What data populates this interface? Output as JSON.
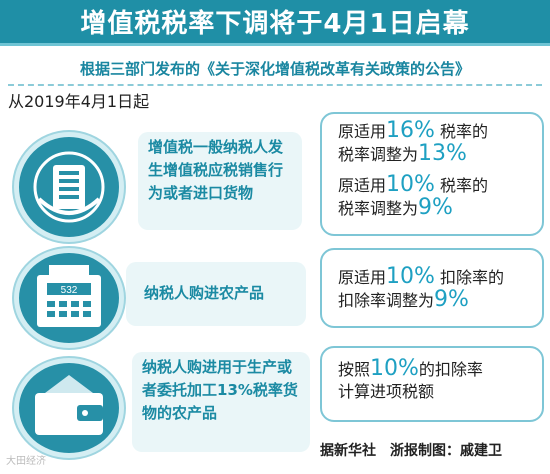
{
  "title": "增值税税率下调将于4月1日启幕",
  "subtitle": "根据三部门发布的《关于深化增值税改革有关政策的公告》",
  "date_line": "从2019年4月1日起",
  "rows": [
    {
      "icon": "tax-emblem-icon",
      "label": "增值税一般纳税人发生增值税应税销售行为或者进口货物",
      "rules": [
        {
          "pre": "原适用",
          "old": "16%",
          "mid": "税率的",
          "post": "税率调整为",
          "new": "13%"
        },
        {
          "pre": "原适用",
          "old": "10%",
          "mid": "税率的",
          "post": "税率调整为",
          "new": "9%"
        }
      ]
    },
    {
      "icon": "calculator-icon",
      "label": "纳税人购进农产品",
      "rules": [
        {
          "pre": "原适用",
          "old": "10%",
          "mid": "扣除率的",
          "post": "扣除率调整为",
          "new": "9%"
        }
      ]
    },
    {
      "icon": "wallet-icon",
      "label": "纳税人购进用于生产或者委托加工13%税率货物的农产品",
      "rule": {
        "pre": "按照",
        "old": "10%",
        "mid": "的扣除率",
        "post": "计算进项税额"
      }
    }
  ],
  "calculator_display": "532",
  "source": "据新华社　浙报制图：戚建卫",
  "watermark": "大田经济",
  "colors": {
    "primary": "#1f8fa6",
    "accent": "#1ea0c2",
    "pale": "#eaf6f8"
  }
}
